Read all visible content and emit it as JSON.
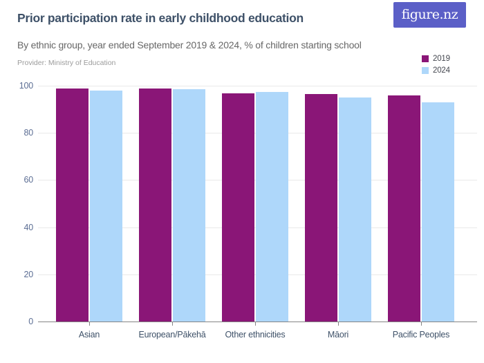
{
  "header": {
    "title": "Prior participation rate in early childhood education",
    "subtitle": "By ethnic group, year ended September 2019 & 2024, % of children starting school",
    "provider": "Provider: Ministry of Education",
    "logo_text": "figure.nz"
  },
  "colors": {
    "series_2019": "#8A1677",
    "series_2024": "#AED7FA",
    "logo_bg": "#5B5FC7",
    "title_text": "#3E5168",
    "gridline": "#E9E9E9",
    "axis_line": "#848484",
    "y_axis_label": "#5C6E94",
    "category_label": "#3E5168"
  },
  "legend": {
    "items": [
      {
        "label": "2019",
        "color": "#8A1677"
      },
      {
        "label": "2024",
        "color": "#AED7FA"
      }
    ]
  },
  "chart_data": {
    "type": "bar",
    "title": "Prior participation rate in early childhood education",
    "subtitle": "By ethnic group, year ended September 2019 & 2024, % of children starting school",
    "categories": [
      "Asian",
      "European/Pākehā",
      "Other ethnicities",
      "Māori",
      "Pacific Peoples"
    ],
    "series": [
      {
        "name": "2019",
        "color": "#8A1677",
        "values": [
          98.8,
          98.8,
          96.7,
          96.6,
          95.9
        ]
      },
      {
        "name": "2024",
        "color": "#AED7FA",
        "values": [
          97.9,
          98.5,
          97.3,
          95.1,
          93.0
        ]
      }
    ],
    "xlabel": "",
    "ylabel": "",
    "ylim": [
      0,
      100
    ],
    "yticks": [
      0,
      20,
      40,
      60,
      80,
      100
    ],
    "grid": true,
    "legend_position": "top-right"
  }
}
